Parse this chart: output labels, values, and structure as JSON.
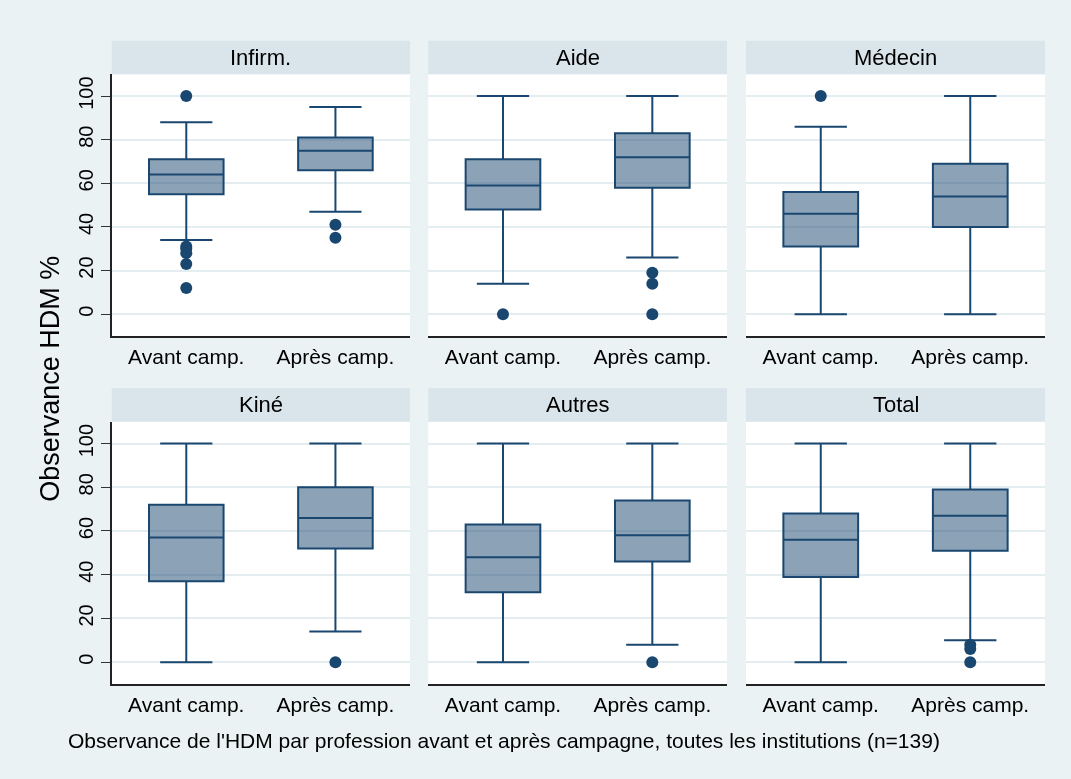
{
  "chart_data": [
    {
      "type": "box",
      "title": "Infirm.",
      "ylabel": "Observance HDM %",
      "categories": [
        "Avant camp.",
        "Après camp."
      ],
      "series": [
        {
          "color": "#1a476f",
          "boxes": [
            {
              "low": 34,
              "q1": 55,
              "median": 64,
              "q3": 71,
              "high": 88,
              "outliers": [
                100,
                31,
                30,
                28,
                23,
                12
              ]
            },
            {
              "low": 47,
              "q1": 66,
              "median": 75,
              "q3": 81,
              "high": 95,
              "outliers": [
                41,
                35
              ]
            }
          ]
        }
      ],
      "ylim": [
        -10,
        110
      ],
      "yticks": [
        0,
        20,
        40,
        60,
        80,
        100
      ],
      "grid": "y",
      "marker": "circle"
    },
    {
      "type": "box",
      "title": "Aide",
      "categories": [
        "Avant camp.",
        "Après camp."
      ],
      "series": [
        {
          "color": "#1a476f",
          "boxes": [
            {
              "low": 14,
              "q1": 48,
              "median": 59,
              "q3": 71,
              "high": 100,
              "outliers": [
                0
              ]
            },
            {
              "low": 26,
              "q1": 58,
              "median": 72,
              "q3": 83,
              "high": 100,
              "outliers": [
                19,
                14,
                0
              ]
            }
          ]
        }
      ],
      "ylim": [
        -10,
        110
      ],
      "yticks": [
        0,
        20,
        40,
        60,
        80,
        100
      ],
      "grid": "y",
      "marker": "circle",
      "tick_labels": "x"
    },
    {
      "type": "box",
      "title": "Médecin",
      "categories": [
        "Avant camp.",
        "Après camp."
      ],
      "series": [
        {
          "color": "#1a476f",
          "boxes": [
            {
              "low": 0,
              "q1": 31,
              "median": 46,
              "q3": 56,
              "high": 86,
              "outliers": [
                100
              ]
            },
            {
              "low": 0,
              "q1": 40,
              "median": 54,
              "q3": 69,
              "high": 100
            }
          ]
        }
      ],
      "ylim": [
        -10,
        110
      ],
      "yticks": [
        0,
        20,
        40,
        60,
        80,
        100
      ],
      "grid": "y",
      "marker": "circle",
      "tick_labels": "x"
    },
    {
      "type": "box",
      "title": "Kiné",
      "categories": [
        "Avant camp.",
        "Après camp."
      ],
      "series": [
        {
          "color": "#1a476f",
          "boxes": [
            {
              "low": 0,
              "q1": 37,
              "median": 57,
              "q3": 72,
              "high": 100
            },
            {
              "low": 14,
              "q1": 52,
              "median": 66,
              "q3": 80,
              "high": 100,
              "outliers": [
                0
              ]
            }
          ]
        }
      ],
      "ylim": [
        -10,
        110
      ],
      "yticks": [
        0,
        20,
        40,
        60,
        80,
        100
      ],
      "grid": "y",
      "marker": "circle"
    },
    {
      "type": "box",
      "title": "Autres",
      "categories": [
        "Avant camp.",
        "Après camp."
      ],
      "series": [
        {
          "color": "#1a476f",
          "boxes": [
            {
              "low": 0,
              "q1": 32,
              "median": 48,
              "q3": 63,
              "high": 100
            },
            {
              "low": 8,
              "q1": 46,
              "median": 58,
              "q3": 74,
              "high": 100,
              "outliers": [
                0
              ]
            }
          ]
        }
      ],
      "ylim": [
        -10,
        110
      ],
      "yticks": [
        0,
        20,
        40,
        60,
        80,
        100
      ],
      "grid": "y",
      "marker": "circle",
      "tick_labels": "x"
    },
    {
      "type": "box",
      "title": "Total",
      "categories": [
        "Avant camp.",
        "Après camp."
      ],
      "series": [
        {
          "color": "#1a476f",
          "boxes": [
            {
              "low": 0,
              "q1": 39,
              "median": 56,
              "q3": 68,
              "high": 100
            },
            {
              "low": 10,
              "q1": 51,
              "median": 67,
              "q3": 79,
              "high": 100,
              "outliers": [
                8,
                6,
                0
              ]
            }
          ]
        }
      ],
      "ylim": [
        -10,
        110
      ],
      "yticks": [
        0,
        20,
        40,
        60,
        80,
        100
      ],
      "grid": "y",
      "marker": "circle",
      "tick_labels": "x",
      "annotations": [
        "Observance de l'HDM par profession avant et après campagne, toutes les institutions (n=139)"
      ]
    }
  ]
}
